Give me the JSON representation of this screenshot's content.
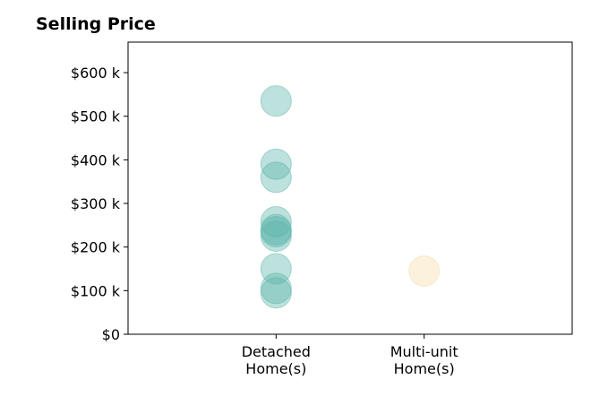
{
  "chart_data": {
    "type": "scatter",
    "title": "Selling Price",
    "xlabel": "",
    "ylabel": "",
    "categories": [
      [
        "Detached",
        "Home(s)"
      ],
      [
        "Multi-unit",
        "Home(s)"
      ]
    ],
    "y_ticks": [
      {
        "value": 0,
        "label": "$0"
      },
      {
        "value": 100000,
        "label": "$100 k"
      },
      {
        "value": 200000,
        "label": "$200 k"
      },
      {
        "value": 300000,
        "label": "$300 k"
      },
      {
        "value": 400000,
        "label": "$400 k"
      },
      {
        "value": 500000,
        "label": "$500 k"
      },
      {
        "value": 600000,
        "label": "$600 k"
      }
    ],
    "ylim": [
      0,
      670000
    ],
    "xlim": [
      0,
      3
    ],
    "grid": false,
    "series": [
      {
        "category_index": 0,
        "color": "#5bb5aa",
        "values": [
          535000,
          390000,
          360000,
          258000,
          240000,
          235000,
          225000,
          150000,
          105000,
          95000
        ]
      },
      {
        "category_index": 1,
        "color": "#f5dcaa",
        "values": [
          145000
        ]
      }
    ]
  }
}
